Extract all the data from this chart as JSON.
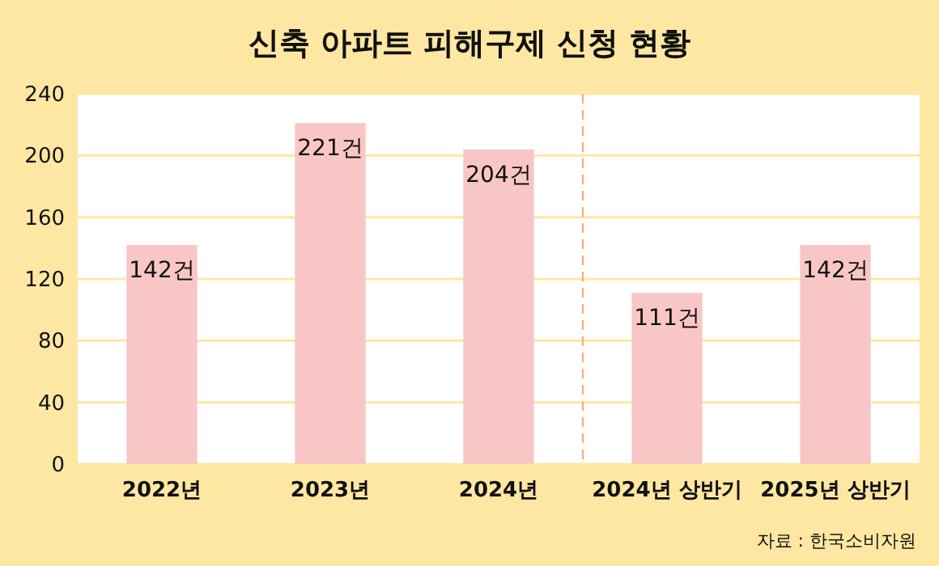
{
  "chart_data": {
    "type": "bar",
    "title": "신축 아파트 피해구제 신청 현황",
    "categories": [
      "2022년",
      "2023년",
      "2024년",
      "2024년 상반기",
      "2025년 상반기"
    ],
    "values": [
      142,
      221,
      204,
      111,
      142
    ],
    "value_labels": [
      "142건",
      "221건",
      "204건",
      "111건",
      "142건"
    ],
    "color": "#f9c6c6",
    "ylim": [
      0,
      240
    ],
    "yticks": [
      0,
      40,
      80,
      120,
      160,
      200,
      240
    ],
    "grid": "y",
    "annotations": [
      "자료 : 한국소비자원"
    ]
  }
}
